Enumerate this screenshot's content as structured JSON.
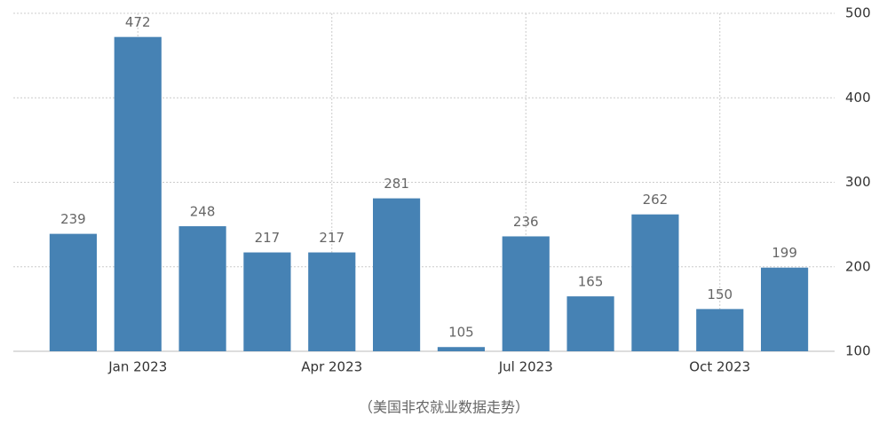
{
  "chart_data": {
    "type": "bar",
    "categories": [
      null,
      "Jan 2023",
      null,
      null,
      "Apr 2023",
      null,
      null,
      "Jul 2023",
      null,
      null,
      "Oct 2023",
      null
    ],
    "values": [
      239,
      472,
      248,
      217,
      217,
      281,
      105,
      236,
      165,
      262,
      150,
      199
    ],
    "color": "#4682b4",
    "ylim": [
      100,
      500
    ],
    "yticks": [
      100,
      200,
      300,
      400,
      500
    ],
    "grid": true,
    "caption": "（美国非农就业数据走势）"
  }
}
